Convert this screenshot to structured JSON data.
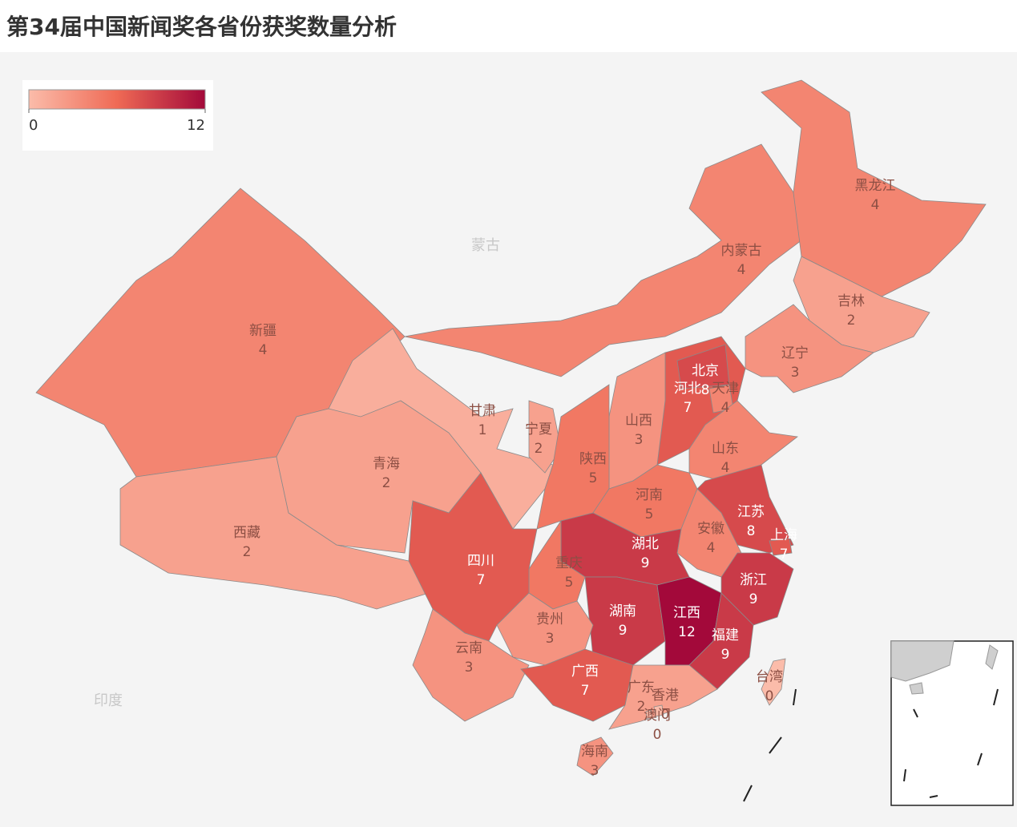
{
  "chart_data": {
    "type": "choropleth",
    "title": "第34届中国新闻奖各省份获奖数量分析",
    "regions": [
      {
        "name": "新疆",
        "value": 4
      },
      {
        "name": "西藏",
        "value": 2
      },
      {
        "name": "青海",
        "value": 2
      },
      {
        "name": "甘肃",
        "value": 1
      },
      {
        "name": "内蒙古",
        "value": 4
      },
      {
        "name": "黑龙江",
        "value": 4
      },
      {
        "name": "吉林",
        "value": 2
      },
      {
        "name": "辽宁",
        "value": 3
      },
      {
        "name": "河北",
        "value": 7
      },
      {
        "name": "北京",
        "value": 8
      },
      {
        "name": "天津",
        "value": 4
      },
      {
        "name": "山西",
        "value": 3
      },
      {
        "name": "宁夏",
        "value": 2
      },
      {
        "name": "陕西",
        "value": 5
      },
      {
        "name": "山东",
        "value": 4
      },
      {
        "name": "河南",
        "value": 5
      },
      {
        "name": "江苏",
        "value": 8
      },
      {
        "name": "上海",
        "value": 7
      },
      {
        "name": "安徽",
        "value": 4
      },
      {
        "name": "浙江",
        "value": 9
      },
      {
        "name": "湖北",
        "value": 9
      },
      {
        "name": "重庆",
        "value": 5
      },
      {
        "name": "四川",
        "value": 7
      },
      {
        "name": "湖南",
        "value": 9
      },
      {
        "name": "江西",
        "value": 12
      },
      {
        "name": "福建",
        "value": 9
      },
      {
        "name": "贵州",
        "value": 3
      },
      {
        "name": "云南",
        "value": 3
      },
      {
        "name": "广西",
        "value": 7
      },
      {
        "name": "广东",
        "value": 2
      },
      {
        "name": "海南",
        "value": 3
      },
      {
        "name": "香港",
        "value": 0
      },
      {
        "name": "澳门",
        "value": 0
      },
      {
        "name": "台湾",
        "value": 0
      }
    ],
    "colorscale": [
      "#fbbcaa",
      "#ef6a55",
      "#a3093a"
    ],
    "zlim": [
      0,
      12
    ],
    "zticks": [
      0,
      12
    ],
    "background_labels": [
      "蒙古",
      "印度"
    ]
  }
}
